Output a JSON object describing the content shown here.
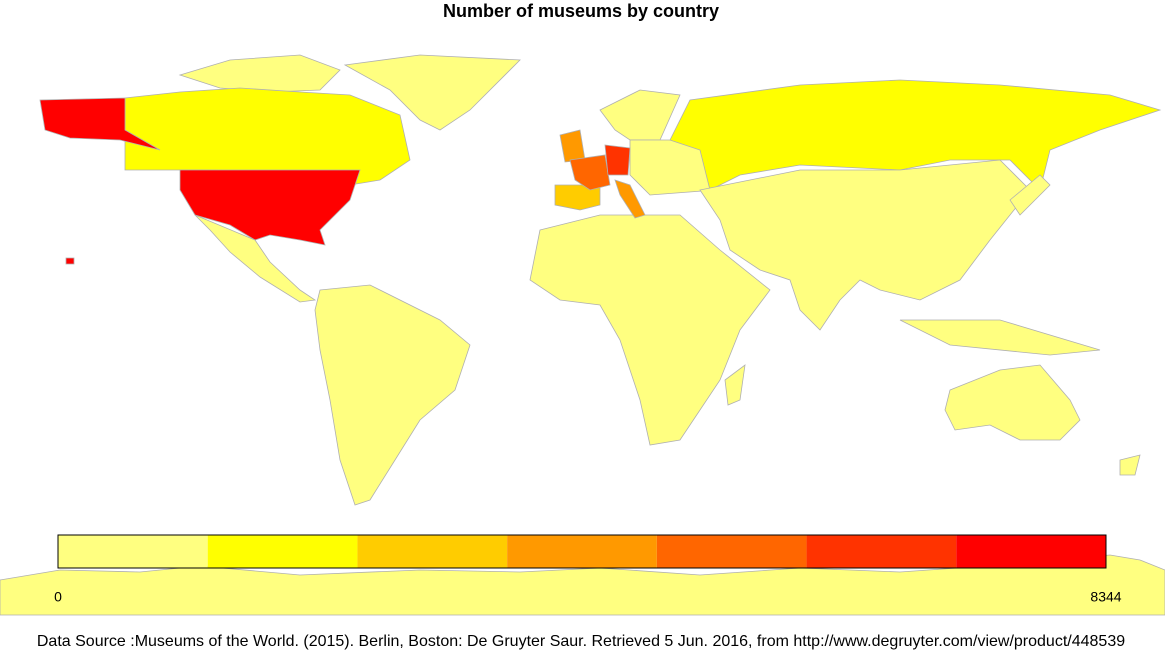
{
  "title": "Number of museums by country",
  "legend": {
    "colors": [
      "#ffff80",
      "#ffff00",
      "#ffcc00",
      "#ff9900",
      "#ff6600",
      "#ff3300",
      "#ff0000"
    ],
    "min": 0,
    "max": 8344
  },
  "source": "Data Source :Museums of the World. (2015). Berlin, Boston: De Gruyter Saur. Retrieved 5 Jun. 2016, from http://www.degruyter.com/view/product/448539"
}
